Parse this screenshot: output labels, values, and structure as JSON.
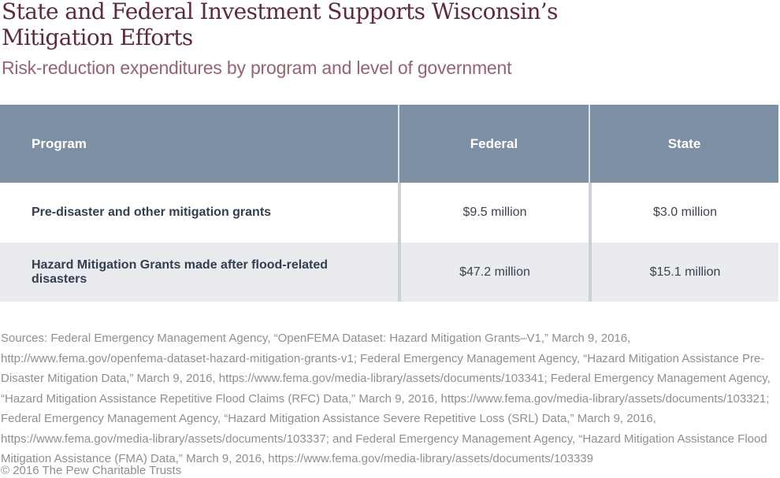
{
  "title_lines": [
    "State and Federal Investment Supports Wisconsin’s",
    "Mitigation Efforts"
  ],
  "subtitle": "Risk-reduction expenditures by program and level of government",
  "chart_data": {
    "type": "table",
    "title": "State and Federal Investment Supports Wisconsin’s Mitigation Efforts",
    "subtitle": "Risk-reduction expenditures by program and level of government",
    "columns": [
      "Program",
      "Federal",
      "State"
    ],
    "rows": [
      [
        "Pre-disaster and other mitigation grants",
        "$9.5 million",
        "$3.0 million"
      ],
      [
        "Hazard Mitigation Grants made after flood-related disasters",
        "$47.2 million",
        "$15.1 million"
      ]
    ],
    "values_in_millions_usd": {
      "federal": [
        9.5,
        47.2
      ],
      "state": [
        3.0,
        15.1
      ]
    }
  },
  "table": {
    "columns": [
      "Program",
      "Federal",
      "State"
    ],
    "rows": [
      {
        "program": "Pre-disaster and other mitigation grants",
        "federal": "$9.5 million",
        "state": "$3.0 million"
      },
      {
        "program": "Hazard Mitigation Grants made after flood-related disasters",
        "federal": "$47.2 million",
        "state": "$15.1 million"
      }
    ]
  },
  "sources": "Sources: Federal Emergency Management Agency, “OpenFEMA Dataset: Hazard Mitigation Grants–V1,” March 9, 2016, http://www.fema.gov/openfema-dataset-hazard-mitigation-grants-v1; Federal Emergency Management Agency, “Hazard Mitigation Assistance Pre-Disaster Mitigation Data,” March 9, 2016, https://www.fema.gov/media-library/assets/documents/103341; Federal Emergency Management Agency, “Hazard Mitigation Assistance Repetitive Flood Claims (RFC) Data,” March 9, 2016, https://www.fema.gov/media-library/assets/documents/103321; Federal Emergency Management Agency, “Hazard Mitigation Assistance Severe Repetitive Loss (SRL) Data,” March 9, 2016, https://www.fema.gov/media-library/assets/documents/103337; and Federal Emergency Management Agency, “Hazard Mitigation Assistance Flood Mitigation Assistance (FMA) Data,” March 9, 2016, https://www.fema.gov/media-library/assets/documents/103339",
  "copyright": "© 2016 The Pew Charitable Trusts",
  "colors": {
    "title_text": "#5e2b3d",
    "subtitle_text": "#96636f",
    "table_header_bg": "#7c8fa3",
    "table_header_text": "#ffffff",
    "row_white_bg": "#ffffff",
    "row_alt_bg": "#e9ebee",
    "body_text": "#333e4f",
    "value_text": "#3b4452",
    "body_divider": "#ccd1d9",
    "header_divider": "#dfe3e8",
    "note_text": "#8d8f92"
  }
}
